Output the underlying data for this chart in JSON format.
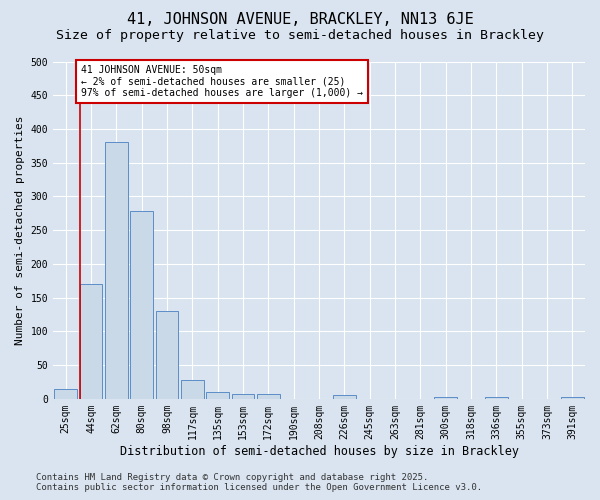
{
  "title": "41, JOHNSON AVENUE, BRACKLEY, NN13 6JE",
  "subtitle": "Size of property relative to semi-detached houses in Brackley",
  "xlabel": "Distribution of semi-detached houses by size in Brackley",
  "ylabel": "Number of semi-detached properties",
  "categories": [
    "25sqm",
    "44sqm",
    "62sqm",
    "80sqm",
    "98sqm",
    "117sqm",
    "135sqm",
    "153sqm",
    "172sqm",
    "190sqm",
    "208sqm",
    "226sqm",
    "245sqm",
    "263sqm",
    "281sqm",
    "300sqm",
    "318sqm",
    "336sqm",
    "355sqm",
    "373sqm",
    "391sqm"
  ],
  "values": [
    15,
    170,
    380,
    278,
    130,
    28,
    10,
    7,
    7,
    0,
    0,
    5,
    0,
    0,
    0,
    3,
    0,
    3,
    0,
    0,
    2
  ],
  "bar_color": "#c9d9e8",
  "bar_edge_color": "#5b8dc8",
  "background_color": "#d9e4f0",
  "plot_bg_color": "#d9e4f0",
  "grid_color": "#ffffff",
  "annotation_text": "41 JOHNSON AVENUE: 50sqm\n← 2% of semi-detached houses are smaller (25)\n97% of semi-detached houses are larger (1,000) →",
  "annotation_box_edge_color": "#cc0000",
  "vline_color": "#cc0000",
  "vline_x_index": 0.55,
  "ylim": [
    0,
    500
  ],
  "yticks": [
    0,
    50,
    100,
    150,
    200,
    250,
    300,
    350,
    400,
    450,
    500
  ],
  "footer": "Contains HM Land Registry data © Crown copyright and database right 2025.\nContains public sector information licensed under the Open Government Licence v3.0.",
  "title_fontsize": 11,
  "subtitle_fontsize": 9.5,
  "xlabel_fontsize": 8.5,
  "ylabel_fontsize": 8,
  "tick_fontsize": 7,
  "footer_fontsize": 6.5
}
